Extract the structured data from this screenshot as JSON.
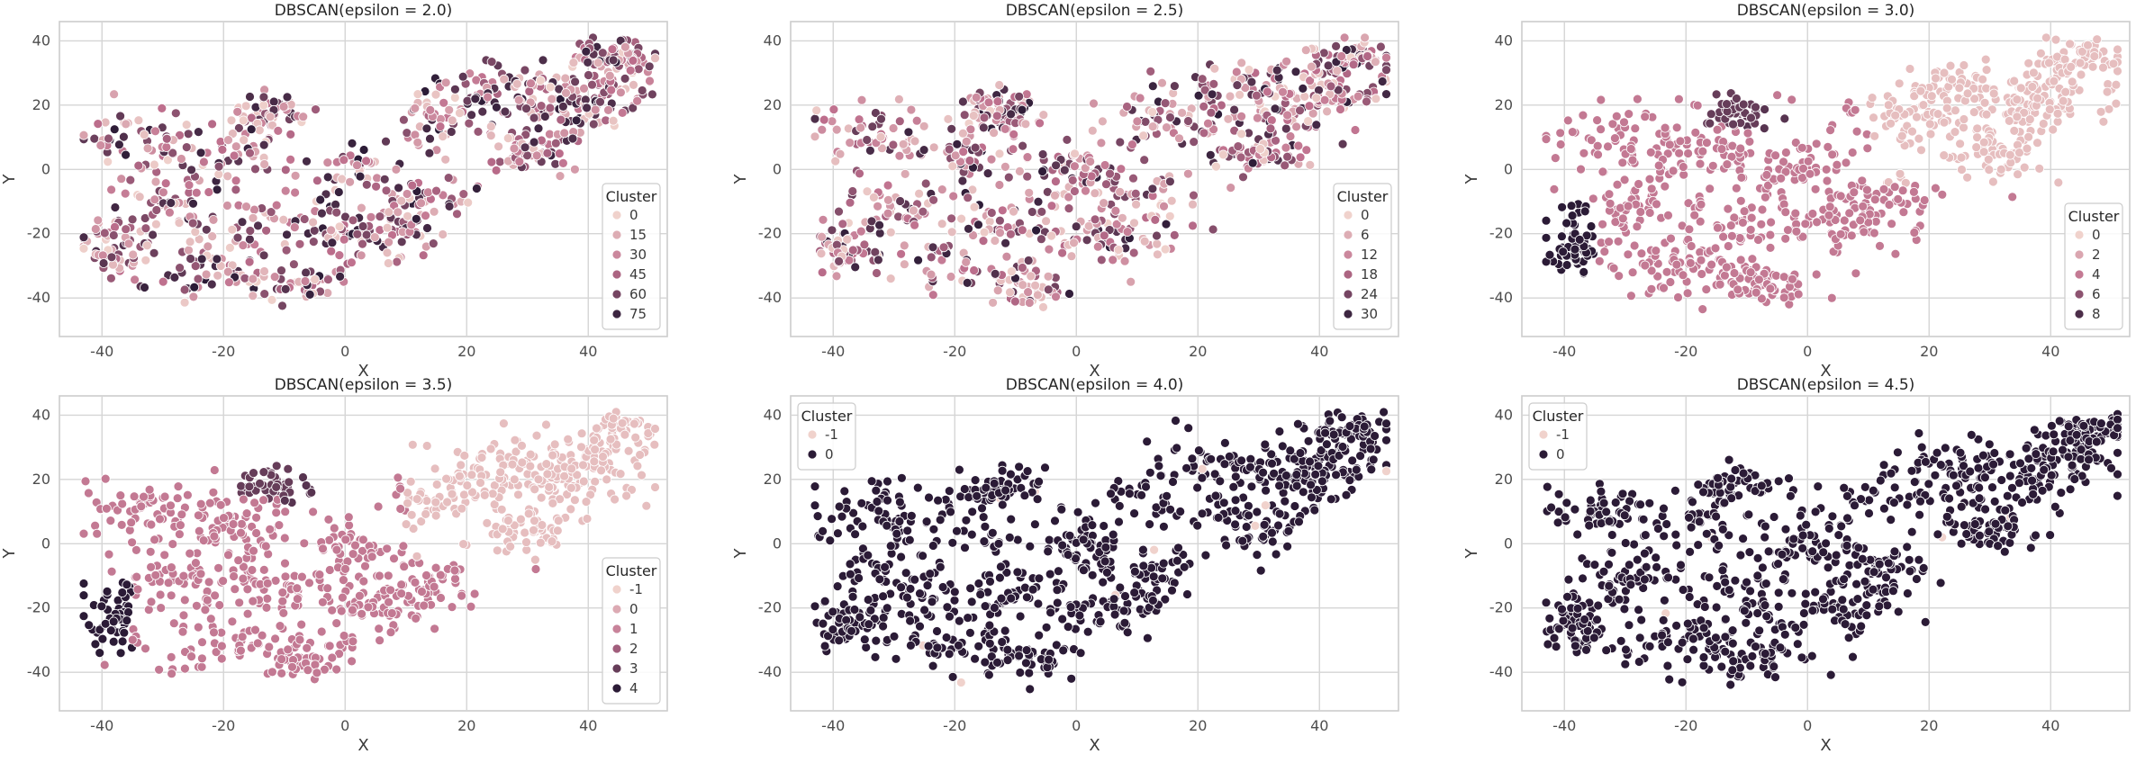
{
  "chart_data": [
    {
      "type": "scatter",
      "title": "DBSCAN(epsilon = 2.0)",
      "xlabel": "X",
      "ylabel": "Y",
      "xlim": [
        -47,
        53
      ],
      "ylim": [
        -52,
        46
      ],
      "xticks": [
        -40,
        -20,
        0,
        20,
        40
      ],
      "yticks": [
        -40,
        -20,
        0,
        20,
        40
      ],
      "xtick_labels": [
        "-40",
        "-20",
        "0",
        "20",
        "40"
      ],
      "ytick_labels": [
        "-40",
        "-20",
        "0",
        "20",
        "40"
      ],
      "grid": true,
      "legend": {
        "title": "Cluster",
        "position": "lower-right",
        "entries": [
          "0",
          "15",
          "30",
          "45",
          "60",
          "75"
        ],
        "entry_values": [
          0,
          15,
          30,
          45,
          60,
          75
        ]
      },
      "hue_range": [
        0,
        80
      ],
      "n_points": 950,
      "colors": [
        "#f0d2cc",
        "#be6f8d",
        "#2b1b36"
      ],
      "point_mode": "random"
    },
    {
      "type": "scatter",
      "title": "DBSCAN(epsilon = 2.5)",
      "xlabel": "X",
      "ylabel": "Y",
      "xlim": [
        -47,
        53
      ],
      "ylim": [
        -52,
        46
      ],
      "xticks": [
        -40,
        -20,
        0,
        20,
        40
      ],
      "yticks": [
        -40,
        -20,
        0,
        20,
        40
      ],
      "xtick_labels": [
        "-40",
        "-20",
        "0",
        "20",
        "40"
      ],
      "ytick_labels": [
        "-40",
        "-20",
        "0",
        "20",
        "40"
      ],
      "grid": true,
      "legend": {
        "title": "Cluster",
        "position": "lower-right",
        "entries": [
          "0",
          "6",
          "12",
          "18",
          "24",
          "30"
        ],
        "entry_values": [
          0,
          6,
          12,
          18,
          24,
          30
        ]
      },
      "hue_range": [
        0,
        32
      ],
      "n_points": 950,
      "colors": [
        "#f0d2cc",
        "#be6f8d",
        "#2b1b36"
      ],
      "point_mode": "random"
    },
    {
      "type": "scatter",
      "title": "DBSCAN(epsilon = 3.0)",
      "xlabel": "X",
      "ylabel": "Y",
      "xlim": [
        -47,
        53
      ],
      "ylim": [
        -52,
        46
      ],
      "xticks": [
        -40,
        -20,
        0,
        20,
        40
      ],
      "yticks": [
        -40,
        -20,
        0,
        20,
        40
      ],
      "xtick_labels": [
        "-40",
        "-20",
        "0",
        "20",
        "40"
      ],
      "ytick_labels": [
        "-40",
        "-20",
        "0",
        "20",
        "40"
      ],
      "grid": true,
      "legend": {
        "title": "Cluster",
        "position": "lower-right",
        "entries": [
          "0",
          "2",
          "4",
          "6",
          "8"
        ],
        "entry_values": [
          0,
          2,
          4,
          6,
          8
        ]
      },
      "hue_range": [
        0,
        9
      ],
      "n_points": 950,
      "colors": [
        "#f0d2cc",
        "#be6f8d",
        "#2b1b36"
      ],
      "point_mode": "regions"
    },
    {
      "type": "scatter",
      "title": "DBSCAN(epsilon = 3.5)",
      "xlabel": "X",
      "ylabel": "Y",
      "xlim": [
        -47,
        53
      ],
      "ylim": [
        -52,
        46
      ],
      "xticks": [
        -40,
        -20,
        0,
        20,
        40
      ],
      "yticks": [
        -40,
        -20,
        0,
        20,
        40
      ],
      "xtick_labels": [
        "-40",
        "-20",
        "0",
        "20",
        "40"
      ],
      "ytick_labels": [
        "-40",
        "-20",
        "0",
        "20",
        "40"
      ],
      "grid": true,
      "legend": {
        "title": "Cluster",
        "position": "lower-right",
        "entries": [
          "-1",
          "0",
          "1",
          "2",
          "3",
          "4"
        ],
        "entry_values": [
          -1,
          0,
          1,
          2,
          3,
          4
        ]
      },
      "hue_range": [
        -1,
        4
      ],
      "n_points": 950,
      "colors": [
        "#f0d2cc",
        "#be6f8d",
        "#2b1b36"
      ],
      "point_mode": "regions"
    },
    {
      "type": "scatter",
      "title": "DBSCAN(epsilon = 4.0)",
      "xlabel": "X",
      "ylabel": "Y",
      "xlim": [
        -47,
        53
      ],
      "ylim": [
        -52,
        46
      ],
      "xticks": [
        -40,
        -20,
        0,
        20,
        40
      ],
      "yticks": [
        -40,
        -20,
        0,
        20,
        40
      ],
      "xtick_labels": [
        "-40",
        "-20",
        "0",
        "20",
        "40"
      ],
      "ytick_labels": [
        "-40",
        "-20",
        "0",
        "20",
        "40"
      ],
      "grid": true,
      "legend": {
        "title": "Cluster",
        "position": "upper-left",
        "entries": [
          "-1",
          "0"
        ],
        "entry_values": [
          -1,
          0
        ]
      },
      "hue_range": [
        -1,
        0
      ],
      "n_points": 950,
      "colors": [
        "#f0d2cc",
        "#be6f8d",
        "#2b1b36"
      ],
      "point_mode": "single"
    },
    {
      "type": "scatter",
      "title": "DBSCAN(epsilon = 4.5)",
      "xlabel": "X",
      "ylabel": "Y",
      "xlim": [
        -47,
        53
      ],
      "ylim": [
        -52,
        46
      ],
      "xticks": [
        -40,
        -20,
        0,
        20,
        40
      ],
      "yticks": [
        -40,
        -20,
        0,
        20,
        40
      ],
      "xtick_labels": [
        "-40",
        "-20",
        "0",
        "20",
        "40"
      ],
      "ytick_labels": [
        "-40",
        "-20",
        "0",
        "20",
        "40"
      ],
      "grid": true,
      "legend": {
        "title": "Cluster",
        "position": "upper-left",
        "entries": [
          "-1",
          "0"
        ],
        "entry_values": [
          -1,
          0
        ]
      },
      "hue_range": [
        -1,
        0
      ],
      "n_points": 950,
      "colors": [
        "#f0d2cc",
        "#be6f8d",
        "#2b1b36"
      ],
      "point_mode": "single"
    }
  ]
}
